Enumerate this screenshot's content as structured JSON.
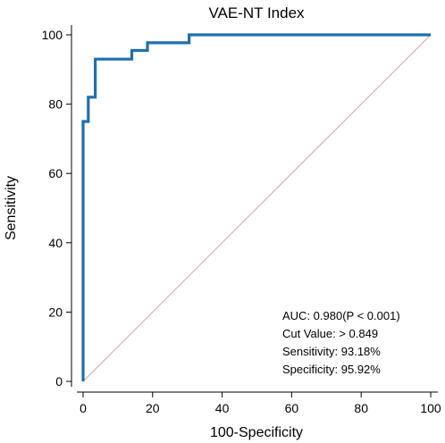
{
  "chart_data": {
    "type": "line",
    "title": "VAE-NT Index",
    "xlabel": "100-Specificity",
    "ylabel": "Sensitivity",
    "xlim": [
      0,
      100
    ],
    "ylim": [
      0,
      100
    ],
    "x_ticks": [
      0,
      20,
      40,
      60,
      80,
      100
    ],
    "y_ticks": [
      0,
      20,
      40,
      60,
      80,
      100
    ],
    "grid": false,
    "colors": {
      "roc_curve": "#1f6fae",
      "reference_line": "#d9a0a6",
      "axis": "#000000"
    },
    "series": [
      {
        "x": [
          0,
          0,
          0.5,
          0.5,
          1.5,
          1.5,
          2.5,
          2.5,
          3.5,
          3.5,
          4.0,
          4.0,
          14.0,
          14.0,
          16.5,
          16.5,
          18.5,
          18.5,
          30.5,
          30.5,
          100
        ],
        "y": [
          0,
          75,
          75,
          75,
          75,
          82,
          82,
          82,
          82,
          93,
          93,
          93,
          93,
          95.5,
          95.5,
          95.5,
          95.5,
          97.7,
          97.7,
          100,
          100
        ]
      },
      {
        "x": [
          0,
          100
        ],
        "y": [
          0,
          100
        ]
      }
    ],
    "annotations": [
      "AUC: 0.980(P < 0.001)",
      "Cut Value: > 0.849",
      "Sensitivity: 93.18%",
      "Specificity: 95.92%"
    ]
  }
}
